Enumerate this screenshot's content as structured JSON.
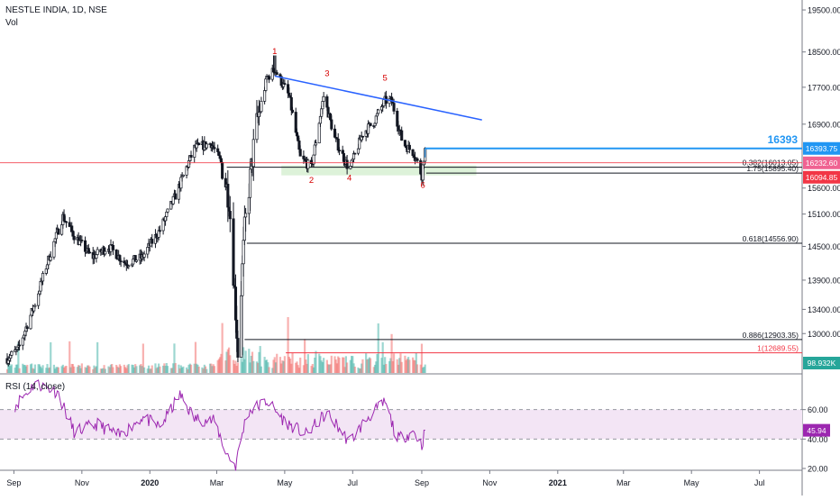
{
  "header": {
    "symbol_line": "NESTLE INDIA, 1D, NSE",
    "volume_label": "Vol",
    "rsi_label": "RSI (14, close)"
  },
  "colors": {
    "candle": "#131722",
    "trendline": "#2962ff",
    "resistance": "#2196f3",
    "fib_line": "#131722",
    "current_price_line": "#f23645",
    "annotation": "#d50000",
    "rsi_line": "#9c27b0",
    "rsi_band": "#f3e5f5",
    "vol_up": "#26a69a",
    "vol_down": "#ef5350",
    "support_zone": "#d4efd0",
    "vol_badge": "#26a69a"
  },
  "chart_data": [
    {
      "type": "candlestick",
      "title": "NESTLE INDIA, 1D, NSE",
      "x_tick_labels": [
        "Sep",
        "Nov",
        "2020",
        "Mar",
        "May",
        "Jul",
        "Sep",
        "Nov",
        "2021",
        "Mar",
        "May",
        "Jul"
      ],
      "y_tick_labels": [
        "19500.00",
        "18500.00",
        "17700.00",
        "16900.00",
        "15600.00",
        "15100.00",
        "14500.00",
        "13900.00",
        "13400.00",
        "13000.00"
      ],
      "ylim": [
        12500,
        19700
      ],
      "y_scale": "log",
      "price_path": [
        {
          "date": "2019-08-26",
          "close": 12600
        },
        {
          "date": "2019-09-05",
          "close": 12750
        },
        {
          "date": "2019-09-20",
          "close": 13500
        },
        {
          "date": "2019-10-01",
          "close": 14200
        },
        {
          "date": "2019-10-15",
          "close": 15050
        },
        {
          "date": "2019-10-25",
          "close": 14700
        },
        {
          "date": "2019-11-10",
          "close": 14300
        },
        {
          "date": "2019-11-25",
          "close": 14500
        },
        {
          "date": "2019-12-10",
          "close": 14200
        },
        {
          "date": "2019-12-25",
          "close": 14300
        },
        {
          "date": "2020-01-10",
          "close": 14800
        },
        {
          "date": "2020-01-25",
          "close": 15500
        },
        {
          "date": "2020-02-10",
          "close": 16400
        },
        {
          "date": "2020-02-25",
          "close": 16500
        },
        {
          "date": "2020-03-05",
          "close": 16100
        },
        {
          "date": "2020-03-12",
          "close": 15400
        },
        {
          "date": "2020-03-20",
          "close": 12700
        },
        {
          "date": "2020-03-26",
          "close": 14800
        },
        {
          "date": "2020-04-05",
          "close": 16800
        },
        {
          "date": "2020-04-15",
          "close": 17900
        },
        {
          "date": "2020-04-22",
          "close": 18100
        },
        {
          "date": "2020-05-05",
          "close": 17500
        },
        {
          "date": "2020-05-15",
          "close": 16200
        },
        {
          "date": "2020-05-25",
          "close": 16000
        },
        {
          "date": "2020-06-05",
          "close": 17500
        },
        {
          "date": "2020-06-15",
          "close": 16600
        },
        {
          "date": "2020-06-28",
          "close": 15950
        },
        {
          "date": "2020-07-10",
          "close": 16700
        },
        {
          "date": "2020-07-20",
          "close": 16950
        },
        {
          "date": "2020-07-30",
          "close": 17400
        },
        {
          "date": "2020-08-05",
          "close": 17400
        },
        {
          "date": "2020-08-15",
          "close": 16500
        },
        {
          "date": "2020-08-25",
          "close": 16300
        },
        {
          "date": "2020-09-01",
          "close": 15850
        },
        {
          "date": "2020-09-04",
          "close": 16395
        }
      ],
      "series": [
        {
          "name": "16393",
          "type": "horizontal-line",
          "value": 16393.75
        },
        {
          "type": "fibonacci",
          "levels": [
            {
              "label": "0.382(16013.05)",
              "value": 16013.05
            },
            {
              "label": "1.75(15895.40)",
              "value": 15895.4
            },
            {
              "label": "0.618(14556.90)",
              "value": 14556.9
            },
            {
              "label": "0.886(12903.35)",
              "value": 12903.35
            },
            {
              "label": "1(12689.55)",
              "value": 12689.55
            }
          ]
        }
      ],
      "annotations": [
        {
          "text": "1",
          "date": "2020-04-22",
          "price": 18450
        },
        {
          "text": "2",
          "date": "2020-05-25",
          "price": 15700
        },
        {
          "text": "3",
          "date": "2020-06-08",
          "price": 17950
        },
        {
          "text": "4",
          "date": "2020-06-28",
          "price": 15750
        },
        {
          "text": "5",
          "date": "2020-07-30",
          "price": 17850
        },
        {
          "text": "6",
          "date": "2020-09-02",
          "price": 15600
        }
      ],
      "trendline": {
        "start": {
          "date": "2020-04-22",
          "price": 17950
        },
        "end": {
          "date": "2020-10-25",
          "price": 16990
        }
      },
      "support_zone": [
        15850,
        16050
      ],
      "price_badges": [
        {
          "text": "16393.75",
          "kind": "resistance"
        },
        {
          "text": "16232.60",
          "kind": "fib"
        },
        {
          "text": "16094.85",
          "kind": "last"
        }
      ],
      "callout": "16393"
    },
    {
      "type": "bar",
      "title": "Vol",
      "badge": "98.932K",
      "shape": "mostly low daily volume with spikes in March 2020 and April-August 2020"
    },
    {
      "type": "line",
      "title": "RSI (14, close)",
      "ylim": [
        20,
        80
      ],
      "y_tick_labels": [
        "60.00",
        "40.00",
        "20.00"
      ],
      "band": [
        40,
        60
      ],
      "last_value_badge": "45.94",
      "points": [
        {
          "date": "2019-09-01",
          "rsi": 62
        },
        {
          "date": "2019-09-20",
          "rsi": 78
        },
        {
          "date": "2019-10-10",
          "rsi": 72
        },
        {
          "date": "2019-10-25",
          "rsi": 45
        },
        {
          "date": "2019-11-15",
          "rsi": 50
        },
        {
          "date": "2019-12-05",
          "rsi": 42
        },
        {
          "date": "2019-12-25",
          "rsi": 55
        },
        {
          "date": "2020-01-10",
          "rsi": 48
        },
        {
          "date": "2020-01-28",
          "rsi": 70
        },
        {
          "date": "2020-02-10",
          "rsi": 54
        },
        {
          "date": "2020-02-28",
          "rsi": 52
        },
        {
          "date": "2020-03-10",
          "rsi": 30
        },
        {
          "date": "2020-03-18",
          "rsi": 22
        },
        {
          "date": "2020-03-28",
          "rsi": 58
        },
        {
          "date": "2020-04-15",
          "rsi": 66
        },
        {
          "date": "2020-05-01",
          "rsi": 52
        },
        {
          "date": "2020-05-20",
          "rsi": 43
        },
        {
          "date": "2020-06-08",
          "rsi": 58
        },
        {
          "date": "2020-06-28",
          "rsi": 38
        },
        {
          "date": "2020-07-15",
          "rsi": 55
        },
        {
          "date": "2020-07-30",
          "rsi": 65
        },
        {
          "date": "2020-08-10",
          "rsi": 40
        },
        {
          "date": "2020-08-25",
          "rsi": 45
        },
        {
          "date": "2020-09-01",
          "rsi": 36
        },
        {
          "date": "2020-09-04",
          "rsi": 46
        }
      ]
    }
  ]
}
